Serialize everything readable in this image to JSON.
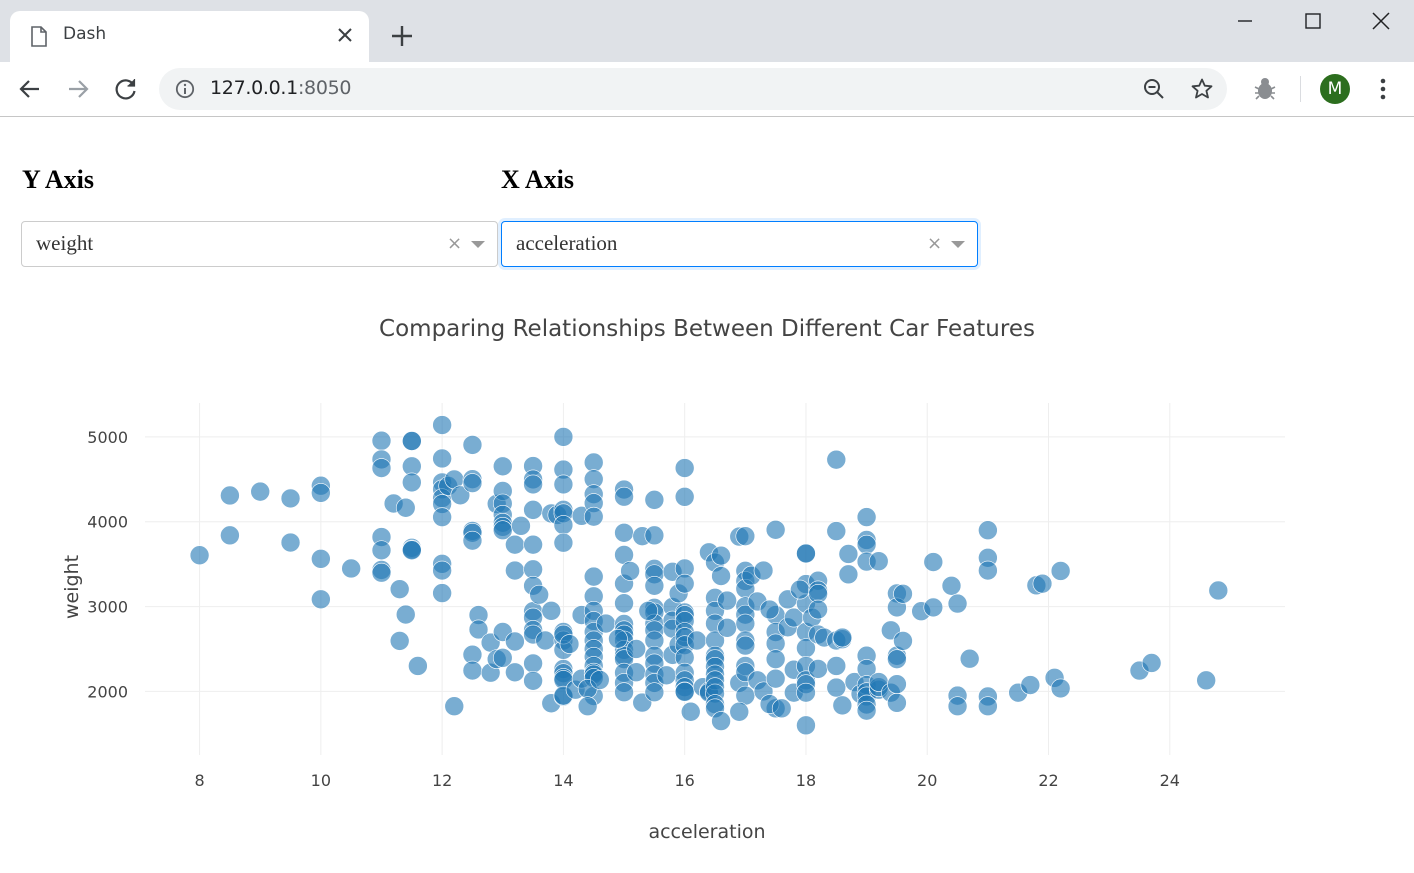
{
  "browser": {
    "tab_title": "Dash",
    "url_host": "127.0.0.1",
    "url_port": ":8050",
    "avatar_letter": "M",
    "avatar_color": "#2c6e1e"
  },
  "controls": {
    "y_heading": "Y Axis",
    "x_heading": "X Axis",
    "y_value": "weight",
    "x_value": "acceleration",
    "clear_glyph": "×"
  },
  "chart_data": {
    "type": "scatter",
    "title": "Comparing Relationships Between Different Car Features",
    "xlabel": "acceleration",
    "ylabel": "weight",
    "xlim": [
      7.1,
      25.9
    ],
    "ylim": [
      1250,
      5400
    ],
    "xticks": [
      8,
      10,
      12,
      14,
      16,
      18,
      20,
      22,
      24
    ],
    "yticks": [
      2000,
      3000,
      4000,
      5000
    ],
    "grid": true,
    "marker_color": "#1f77b4",
    "marker_opacity": 0.6,
    "points": [
      [
        8,
        3605
      ],
      [
        8.5,
        4310
      ],
      [
        8.5,
        3840
      ],
      [
        9,
        4355
      ],
      [
        9.5,
        4275
      ],
      [
        9.5,
        3755
      ],
      [
        10,
        4425
      ],
      [
        10,
        4340
      ],
      [
        10,
        3563
      ],
      [
        10,
        3086
      ],
      [
        10.5,
        3449
      ],
      [
        11,
        4955
      ],
      [
        11,
        4735
      ],
      [
        11,
        4633
      ],
      [
        11,
        3820
      ],
      [
        11,
        3664
      ],
      [
        11,
        3432
      ],
      [
        11,
        3399
      ],
      [
        11.2,
        4215
      ],
      [
        11.3,
        3205
      ],
      [
        11.4,
        4165
      ],
      [
        11.4,
        2906
      ],
      [
        11.5,
        4951
      ],
      [
        11.5,
        4952
      ],
      [
        11.5,
        4654
      ],
      [
        11.5,
        4464
      ],
      [
        11.5,
        3693
      ],
      [
        11.5,
        3672
      ],
      [
        11.5,
        3664
      ],
      [
        11.6,
        2300
      ],
      [
        11.3,
        2595
      ],
      [
        12,
        5140
      ],
      [
        12,
        4746
      ],
      [
        12,
        4464
      ],
      [
        12,
        4382
      ],
      [
        12,
        4278
      ],
      [
        12,
        4209
      ],
      [
        12,
        4054
      ],
      [
        12,
        3504
      ],
      [
        12,
        3425
      ],
      [
        12,
        3159
      ],
      [
        12.1,
        4423
      ],
      [
        12.2,
        4499
      ],
      [
        12.2,
        1825
      ],
      [
        12.3,
        4312
      ],
      [
        12.5,
        4906
      ],
      [
        12.5,
        4502
      ],
      [
        12.5,
        4456
      ],
      [
        12.5,
        3892
      ],
      [
        12.5,
        3870
      ],
      [
        12.5,
        3777
      ],
      [
        12.5,
        2433
      ],
      [
        12.5,
        2246
      ],
      [
        12.6,
        2900
      ],
      [
        12.6,
        2730
      ],
      [
        12.8,
        2575
      ],
      [
        12.8,
        2220
      ],
      [
        12.9,
        2380
      ],
      [
        12.9,
        4210
      ],
      [
        13,
        4654
      ],
      [
        13,
        4363
      ],
      [
        13,
        4215
      ],
      [
        13,
        4082
      ],
      [
        13,
        3988
      ],
      [
        13,
        3940
      ],
      [
        13,
        3900
      ],
      [
        13,
        2395
      ],
      [
        13,
        2700
      ],
      [
        13.2,
        3730
      ],
      [
        13.2,
        3425
      ],
      [
        13.2,
        2588
      ],
      [
        13.2,
        2225
      ],
      [
        13.3,
        3952
      ],
      [
        13.5,
        4657
      ],
      [
        13.5,
        4499
      ],
      [
        13.5,
        4440
      ],
      [
        13.5,
        4140
      ],
      [
        13.5,
        3730
      ],
      [
        13.5,
        3439
      ],
      [
        13.5,
        3245
      ],
      [
        13.5,
        2945
      ],
      [
        13.5,
        2870
      ],
      [
        13.5,
        2725
      ],
      [
        13.5,
        2670
      ],
      [
        13.5,
        2330
      ],
      [
        13.5,
        2125
      ],
      [
        13.6,
        3140
      ],
      [
        13.7,
        2600
      ],
      [
        13.8,
        4098
      ],
      [
        13.8,
        2950
      ],
      [
        13.8,
        1860
      ],
      [
        13.9,
        4080
      ],
      [
        14,
        5000
      ],
      [
        14,
        4615
      ],
      [
        14,
        4440
      ],
      [
        14,
        4141
      ],
      [
        14,
        4100
      ],
      [
        14,
        3962
      ],
      [
        14,
        3753
      ],
      [
        14,
        2700
      ],
      [
        14,
        2600
      ],
      [
        14,
        2490
      ],
      [
        14,
        2264
      ],
      [
        14,
        2215
      ],
      [
        14,
        2158
      ],
      [
        14,
        2135
      ],
      [
        14,
        1940
      ],
      [
        14,
        1950
      ],
      [
        14,
        2670
      ],
      [
        14.1,
        2558
      ],
      [
        14.2,
        2020
      ],
      [
        14.3,
        4070
      ],
      [
        14.3,
        2150
      ],
      [
        14.3,
        2900
      ],
      [
        14.5,
        4699
      ],
      [
        14.5,
        4502
      ],
      [
        14.5,
        4325
      ],
      [
        14.5,
        4220
      ],
      [
        14.5,
        4060
      ],
      [
        14.5,
        3353
      ],
      [
        14.5,
        3121
      ],
      [
        14.5,
        2950
      ],
      [
        14.5,
        2830
      ],
      [
        14.5,
        2700
      ],
      [
        14.5,
        2600
      ],
      [
        14.5,
        2500
      ],
      [
        14.5,
        2408
      ],
      [
        14.5,
        2300
      ],
      [
        14.5,
        2220
      ],
      [
        14.5,
        2200
      ],
      [
        14.5,
        2158
      ],
      [
        14.5,
        1945
      ],
      [
        14.4,
        2030
      ],
      [
        14.7,
        2800
      ],
      [
        14.6,
        2135
      ],
      [
        14.4,
        1825
      ],
      [
        15,
        4380
      ],
      [
        15,
        4295
      ],
      [
        15,
        3870
      ],
      [
        15,
        3609
      ],
      [
        15,
        3270
      ],
      [
        15,
        3039
      ],
      [
        15,
        2795
      ],
      [
        15,
        2720
      ],
      [
        15,
        2670
      ],
      [
        15,
        2600
      ],
      [
        15,
        2490
      ],
      [
        15,
        2420
      ],
      [
        15,
        2380
      ],
      [
        15,
        2220
      ],
      [
        15,
        2100
      ],
      [
        15,
        1990
      ],
      [
        14.9,
        2620
      ],
      [
        15.1,
        3420
      ],
      [
        15.2,
        2500
      ],
      [
        15.3,
        3830
      ],
      [
        15.2,
        2226
      ],
      [
        15.3,
        1868
      ],
      [
        15.5,
        4258
      ],
      [
        15.5,
        3840
      ],
      [
        15.5,
        3445
      ],
      [
        15.5,
        3381
      ],
      [
        15.5,
        3245
      ],
      [
        15.5,
        2985
      ],
      [
        15.5,
        2930
      ],
      [
        15.5,
        2800
      ],
      [
        15.5,
        2720
      ],
      [
        15.5,
        2600
      ],
      [
        15.5,
        2420
      ],
      [
        15.5,
        2330
      ],
      [
        15.5,
        2200
      ],
      [
        15.5,
        2100
      ],
      [
        15.5,
        1990
      ],
      [
        15.4,
        2950
      ],
      [
        15.8,
        3410
      ],
      [
        15.8,
        2995
      ],
      [
        15.8,
        2835
      ],
      [
        15.8,
        2740
      ],
      [
        15.8,
        2430
      ],
      [
        15.7,
        2190
      ],
      [
        15.9,
        3155
      ],
      [
        15.9,
        2550
      ],
      [
        16,
        4633
      ],
      [
        16,
        4294
      ],
      [
        16,
        3449
      ],
      [
        16,
        3270
      ],
      [
        16,
        2930
      ],
      [
        16,
        2900
      ],
      [
        16,
        2830
      ],
      [
        16,
        2700
      ],
      [
        16,
        2640
      ],
      [
        16,
        2545
      ],
      [
        16,
        2400
      ],
      [
        16,
        2220
      ],
      [
        16,
        2130
      ],
      [
        16,
        2050
      ],
      [
        16,
        2000
      ],
      [
        16,
        1995
      ],
      [
        16.1,
        1760
      ],
      [
        16.2,
        2600
      ],
      [
        16.4,
        3640
      ],
      [
        16.3,
        2050
      ],
      [
        16.4,
        2000
      ],
      [
        16.4,
        1985
      ],
      [
        16.5,
        3520
      ],
      [
        16.5,
        3103
      ],
      [
        16.5,
        2950
      ],
      [
        16.5,
        2800
      ],
      [
        16.5,
        2600
      ],
      [
        16.5,
        2420
      ],
      [
        16.5,
        2380
      ],
      [
        16.5,
        2290
      ],
      [
        16.5,
        2200
      ],
      [
        16.5,
        2130
      ],
      [
        16.5,
        2050
      ],
      [
        16.5,
        1975
      ],
      [
        16.5,
        1850
      ],
      [
        16.5,
        1800
      ],
      [
        16.6,
        3600
      ],
      [
        16.6,
        3360
      ],
      [
        16.6,
        1650
      ],
      [
        16.7,
        3070
      ],
      [
        16.7,
        2750
      ],
      [
        16.9,
        3825
      ],
      [
        16.9,
        2100
      ],
      [
        17,
        3830
      ],
      [
        17,
        3421
      ],
      [
        17,
        3302
      ],
      [
        17,
        3210
      ],
      [
        17,
        3003
      ],
      [
        17,
        2905
      ],
      [
        17,
        2800
      ],
      [
        17,
        2600
      ],
      [
        17,
        2540
      ],
      [
        17,
        2300
      ],
      [
        17,
        2226
      ],
      [
        17,
        1950
      ],
      [
        16.9,
        1760
      ],
      [
        17.1,
        3365
      ],
      [
        17.2,
        3060
      ],
      [
        17.3,
        3425
      ],
      [
        17.2,
        2130
      ],
      [
        17.3,
        2000
      ],
      [
        17.5,
        3905
      ],
      [
        17.5,
        2900
      ],
      [
        17.5,
        2700
      ],
      [
        17.5,
        2565
      ],
      [
        17.5,
        2380
      ],
      [
        17.5,
        2150
      ],
      [
        17.5,
        1800
      ],
      [
        17.4,
        1850
      ],
      [
        17.4,
        2965
      ],
      [
        17.6,
        1800
      ],
      [
        17.7,
        2755
      ],
      [
        17.7,
        3085
      ],
      [
        17.8,
        1985
      ],
      [
        17.8,
        2870
      ],
      [
        17.8,
        2255
      ],
      [
        18,
        3630
      ],
      [
        18,
        3625
      ],
      [
        18,
        3265
      ],
      [
        18,
        3035
      ],
      [
        18,
        2700
      ],
      [
        18,
        2510
      ],
      [
        18,
        2300
      ],
      [
        18,
        2130
      ],
      [
        18,
        2085
      ],
      [
        18,
        1985
      ],
      [
        18,
        1600
      ],
      [
        17.9,
        3200
      ],
      [
        18.1,
        2870
      ],
      [
        18.2,
        3305
      ],
      [
        18.2,
        3190
      ],
      [
        18.2,
        3150
      ],
      [
        18.2,
        2965
      ],
      [
        18.2,
        2670
      ],
      [
        18.2,
        2265
      ],
      [
        18.3,
        2635
      ],
      [
        18.5,
        4732
      ],
      [
        18.5,
        3890
      ],
      [
        18.5,
        2600
      ],
      [
        18.5,
        2300
      ],
      [
        18.5,
        2045
      ],
      [
        18.6,
        2615
      ],
      [
        18.6,
        2635
      ],
      [
        18.6,
        1835
      ],
      [
        18.7,
        3380
      ],
      [
        18.7,
        3620
      ],
      [
        18.8,
        2110
      ],
      [
        18.9,
        1970
      ],
      [
        19,
        4055
      ],
      [
        19,
        3785
      ],
      [
        19,
        3730
      ],
      [
        19,
        3530
      ],
      [
        19,
        2420
      ],
      [
        19,
        2265
      ],
      [
        19,
        2075
      ],
      [
        19,
        1990
      ],
      [
        19,
        1940
      ],
      [
        19,
        1845
      ],
      [
        19,
        1773
      ],
      [
        19.2,
        3535
      ],
      [
        19.2,
        2020
      ],
      [
        19.2,
        2050
      ],
      [
        19.2,
        2110
      ],
      [
        19.4,
        1985
      ],
      [
        19.4,
        2720
      ],
      [
        19.5,
        3155
      ],
      [
        19.5,
        2990
      ],
      [
        19.5,
        2420
      ],
      [
        19.5,
        2380
      ],
      [
        19.5,
        2085
      ],
      [
        19.5,
        1865
      ],
      [
        19.6,
        2595
      ],
      [
        19.6,
        3150
      ],
      [
        19.9,
        2945
      ],
      [
        20.1,
        3525
      ],
      [
        20.1,
        2990
      ],
      [
        20.4,
        3245
      ],
      [
        20.5,
        3035
      ],
      [
        20.5,
        1950
      ],
      [
        20.5,
        1825
      ],
      [
        20.7,
        2385
      ],
      [
        21,
        3900
      ],
      [
        21,
        3575
      ],
      [
        21,
        3425
      ],
      [
        21,
        1940
      ],
      [
        21,
        1825
      ],
      [
        21.5,
        1985
      ],
      [
        21.7,
        2075
      ],
      [
        21.8,
        3250
      ],
      [
        21.9,
        3270
      ],
      [
        22.1,
        2160
      ],
      [
        22.2,
        3420
      ],
      [
        22.2,
        2035
      ],
      [
        23.5,
        2245
      ],
      [
        23.7,
        2335
      ],
      [
        24.6,
        2130
      ],
      [
        24.8,
        3190
      ]
    ]
  }
}
